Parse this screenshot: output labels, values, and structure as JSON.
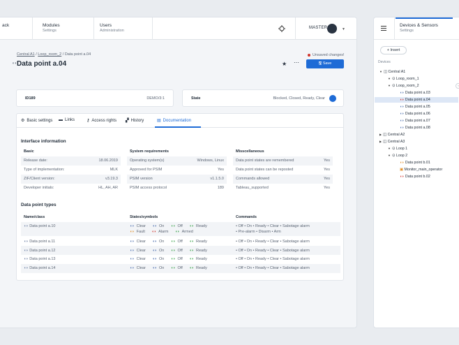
{
  "topnav": {
    "tabs": [
      {
        "title": "ack",
        "subtitle": ""
      },
      {
        "title": "Modules",
        "subtitle": "Settings"
      },
      {
        "title": "Users",
        "subtitle": "Administration"
      }
    ],
    "user": "MASTER"
  },
  "breadcrumb": {
    "items": [
      "Central A1",
      "Loop_room_2",
      "Data point a.04"
    ]
  },
  "page": {
    "title": "Data point a.04",
    "unsaved": "Unsaved changes!",
    "save_label": "Save"
  },
  "id_card": {
    "label": "ID189",
    "value": "DEMO/3:1"
  },
  "state_card": {
    "label": "State",
    "value": "Blocked, Closed, Ready, Clear"
  },
  "tabs": [
    {
      "label": "Basic settings",
      "icon": "gear-icon"
    },
    {
      "label": "Links",
      "icon": "link-icon"
    },
    {
      "label": "Access rights",
      "icon": "key-icon"
    },
    {
      "label": "History",
      "icon": "history-icon"
    },
    {
      "label": "Documentation",
      "icon": "document-icon"
    }
  ],
  "doc": {
    "interface_title": "Interface information",
    "basic": {
      "title": "Basic",
      "rows": [
        [
          "Release date:",
          "18.06.2019"
        ],
        [
          "Type of implementation:",
          "MLK"
        ],
        [
          "ZIF/Client version:",
          "v3.19.3"
        ],
        [
          "Developer initials:",
          "HL, AH, AR"
        ]
      ]
    },
    "system": {
      "title": "System requirements",
      "rows": [
        [
          "Operating system(s)",
          "Windows, Linux"
        ],
        [
          "Approved for PSIM",
          "Yes"
        ],
        [
          "PSIM version",
          "v1.1.5.0"
        ],
        [
          "PSIM access protocol",
          "189"
        ]
      ]
    },
    "misc": {
      "title": "Misscellaneous",
      "rows": [
        [
          "Data point states are remembered",
          "Yes"
        ],
        [
          "Data point states can be reposted",
          "Yes"
        ],
        [
          "Commands allowed",
          "Yes"
        ],
        [
          "Tableau_supported",
          "Yes"
        ]
      ]
    },
    "types_title": "Data point types",
    "types_headers": [
      "Name/class",
      "States/symbols",
      "Commands"
    ],
    "types_rows": [
      {
        "name": "Data point a.10",
        "states1": [
          "Clear",
          "On",
          "Off",
          "Ready"
        ],
        "states2": [
          "Fault",
          "Alarm",
          "Armed"
        ],
        "cmds1": "• Off  • On  • Ready  • Clear  • Sabotage alarm",
        "cmds2": "• Pre-alarm  • Disarm  • Arm"
      },
      {
        "name": "Data point a.11",
        "states1": [
          "Clear",
          "On",
          "Off",
          "Ready"
        ],
        "cmds1": "• Off  • On  • Ready  • Clear  • Sabotage alarm"
      },
      {
        "name": "Data point a.12",
        "states1": [
          "Clear",
          "On",
          "Off",
          "Ready"
        ],
        "cmds1": "• Off  • On  • Ready  • Clear  • Sabotage alarm"
      },
      {
        "name": "Data point a.13",
        "states1": [
          "Clear",
          "On",
          "Off",
          "Ready"
        ],
        "cmds1": "• Off  • On  • Ready  • Clear  • Sabotage alarm"
      },
      {
        "name": "Data point a.14",
        "states1": [
          "Clear",
          "On",
          "Off",
          "Ready"
        ],
        "cmds1": "• Off  • On  • Ready  • Clear  • Sabotage alarm"
      }
    ]
  },
  "right": {
    "tab_title": "Devices & Sensors",
    "tab_subtitle": "Settings",
    "insert_label": "+ Insert",
    "devices_label": "Devices",
    "tree": [
      {
        "label": "Central A1",
        "icon": "device"
      },
      {
        "label": "Loop_room_1",
        "icon": "loop"
      },
      {
        "label": "Loop_room_2",
        "icon": "loop"
      },
      {
        "label": "Data point a.03",
        "icon": "dp"
      },
      {
        "label": "Data point a.04",
        "icon": "dp"
      },
      {
        "label": "Data point a.05",
        "icon": "dp"
      },
      {
        "label": "Data point a.06",
        "icon": "dp"
      },
      {
        "label": "Data point a.07",
        "icon": "dp"
      },
      {
        "label": "Data point a.08",
        "icon": "dp"
      },
      {
        "label": "Central A2",
        "icon": "device"
      },
      {
        "label": "Central A3",
        "icon": "device"
      },
      {
        "label": "Loop 1",
        "icon": "loop"
      },
      {
        "label": "Loop 2",
        "icon": "loop"
      },
      {
        "label": "Data point b.01",
        "icon": "dp-warn"
      },
      {
        "label": "Monitor_main_operator",
        "icon": "monitor"
      },
      {
        "label": "Data point b.02",
        "icon": "dp"
      }
    ]
  }
}
